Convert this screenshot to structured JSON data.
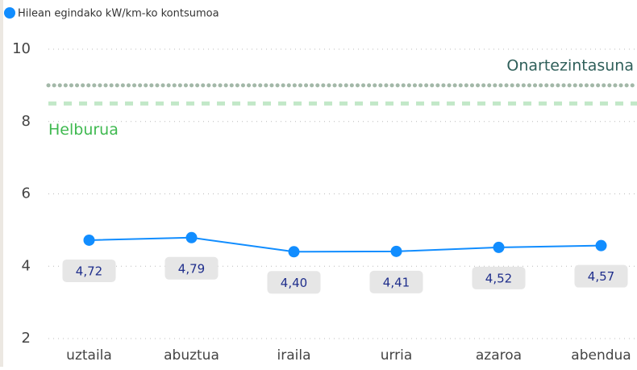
{
  "chart_data": {
    "type": "line",
    "legend": "Hilean egindako kW/km-ko kontsumoa",
    "categories": [
      "uztaila",
      "abuztua",
      "iraila",
      "urria",
      "azaroa",
      "abendua"
    ],
    "series": [
      {
        "name": "Hilean egindako kW/km-ko kontsumoa",
        "color": "#118dff",
        "values": [
          4.72,
          4.79,
          4.4,
          4.41,
          4.52,
          4.57
        ],
        "value_labels": [
          "4,72",
          "4,79",
          "4,40",
          "4,41",
          "4,52",
          "4,57"
        ]
      }
    ],
    "ylim": [
      2,
      10
    ],
    "yticks": [
      2,
      4,
      6,
      8,
      10
    ],
    "grid": true,
    "reference_lines": [
      {
        "name": "Onartezintasuna",
        "value": 9,
        "color": "#a3b8a8",
        "style": "dotted"
      },
      {
        "name": "Helburua",
        "value": 8.5,
        "color": "#c2e8c8",
        "style": "dashed",
        "label_color": "#3fb950"
      }
    ]
  }
}
